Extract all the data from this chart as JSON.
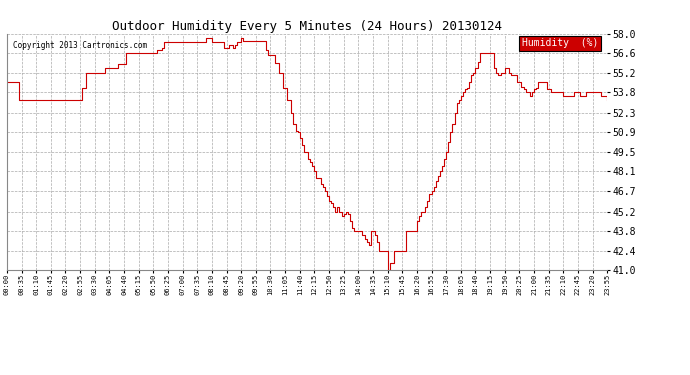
{
  "title": "Outdoor Humidity Every 5 Minutes (24 Hours) 20130124",
  "copyright": "Copyright 2013 Cartronics.com",
  "legend_label": "Humidity  (%)",
  "line_color": "#cc0000",
  "legend_bg": "#cc0000",
  "legend_text_color": "#ffffff",
  "bg_color": "#ffffff",
  "plot_bg_color": "#ffffff",
  "grid_color": "#aaaaaa",
  "yticks": [
    41.0,
    42.4,
    43.8,
    45.2,
    46.7,
    48.1,
    49.5,
    50.9,
    52.3,
    53.8,
    55.2,
    56.6,
    58.0
  ],
  "ylim": [
    41.0,
    58.0
  ],
  "n_points": 288,
  "tick_labels": [
    "00:00",
    "00:35",
    "01:10",
    "01:45",
    "02:20",
    "02:55",
    "03:30",
    "04:05",
    "04:40",
    "05:15",
    "05:50",
    "06:25",
    "07:00",
    "07:35",
    "08:10",
    "08:45",
    "09:20",
    "09:55",
    "10:30",
    "11:05",
    "11:40",
    "12:15",
    "12:50",
    "13:25",
    "14:00",
    "14:35",
    "15:10",
    "15:45",
    "16:20",
    "16:55",
    "17:30",
    "18:05",
    "18:40",
    "19:15",
    "19:50",
    "20:25",
    "21:00",
    "21:35",
    "22:10",
    "22:45",
    "23:20",
    "23:55"
  ],
  "humidity_values": [
    54.5,
    54.5,
    54.5,
    54.5,
    54.5,
    54.5,
    53.2,
    53.2,
    53.2,
    53.2,
    53.2,
    53.2,
    53.2,
    53.2,
    53.2,
    53.2,
    53.2,
    53.2,
    53.2,
    53.2,
    53.2,
    53.2,
    53.2,
    53.2,
    53.2,
    53.2,
    53.2,
    53.2,
    53.2,
    53.2,
    53.2,
    53.2,
    53.2,
    53.2,
    53.2,
    53.2,
    54.1,
    54.1,
    55.2,
    55.2,
    55.2,
    55.2,
    55.2,
    55.2,
    55.2,
    55.2,
    55.2,
    55.5,
    55.5,
    55.5,
    55.5,
    55.5,
    55.5,
    55.8,
    55.8,
    55.8,
    55.8,
    56.6,
    56.6,
    56.6,
    56.6,
    56.6,
    56.6,
    56.6,
    56.6,
    56.6,
    56.6,
    56.6,
    56.6,
    56.6,
    56.6,
    56.6,
    56.8,
    56.8,
    57.0,
    57.4,
    57.4,
    57.4,
    57.4,
    57.4,
    57.4,
    57.4,
    57.4,
    57.4,
    57.4,
    57.4,
    57.4,
    57.4,
    57.4,
    57.4,
    57.4,
    57.4,
    57.4,
    57.4,
    57.4,
    57.7,
    57.7,
    57.7,
    57.4,
    57.4,
    57.4,
    57.4,
    57.4,
    57.4,
    57.0,
    57.0,
    57.2,
    57.2,
    57.0,
    57.2,
    57.4,
    57.4,
    57.7,
    57.5,
    57.5,
    57.5,
    57.5,
    57.5,
    57.5,
    57.5,
    57.5,
    57.5,
    57.5,
    57.5,
    56.8,
    56.5,
    56.5,
    56.5,
    55.9,
    55.9,
    55.2,
    55.2,
    54.1,
    54.1,
    53.2,
    53.2,
    52.3,
    51.5,
    51.0,
    50.9,
    50.5,
    50.0,
    49.5,
    49.5,
    49.0,
    48.8,
    48.5,
    48.1,
    47.6,
    47.6,
    47.2,
    47.0,
    46.7,
    46.3,
    46.0,
    45.8,
    45.5,
    45.2,
    45.5,
    45.2,
    44.9,
    45.0,
    45.2,
    45.0,
    44.5,
    44.0,
    43.8,
    43.8,
    43.8,
    43.8,
    43.5,
    43.2,
    43.0,
    42.8,
    43.8,
    43.8,
    43.5,
    43.0,
    42.4,
    42.4,
    42.4,
    42.4,
    41.0,
    41.5,
    41.5,
    42.4,
    42.4,
    42.4,
    42.4,
    42.4,
    42.4,
    43.8,
    43.8,
    43.8,
    43.8,
    43.8,
    44.5,
    44.9,
    45.2,
    45.2,
    45.5,
    46.0,
    46.5,
    46.7,
    47.0,
    47.4,
    47.8,
    48.1,
    48.5,
    49.0,
    49.5,
    50.2,
    50.9,
    51.5,
    52.3,
    53.0,
    53.2,
    53.5,
    53.8,
    54.0,
    54.1,
    54.5,
    55.0,
    55.2,
    55.5,
    56.0,
    56.6,
    56.6,
    56.6,
    56.6,
    56.6,
    56.6,
    56.6,
    55.5,
    55.2,
    55.0,
    55.2,
    55.2,
    55.5,
    55.5,
    55.2,
    55.0,
    55.0,
    55.0,
    54.5,
    54.5,
    54.2,
    54.0,
    53.8,
    53.8,
    53.5,
    53.8,
    54.0,
    54.1,
    54.5,
    54.5,
    54.5,
    54.5,
    54.0,
    54.0,
    53.8,
    53.8,
    53.8,
    53.8,
    53.8,
    53.8,
    53.5,
    53.5,
    53.5,
    53.5,
    53.5,
    53.8,
    53.8,
    53.8,
    53.5,
    53.5,
    53.5,
    53.8,
    53.8,
    53.8,
    53.8,
    53.8,
    53.8,
    53.8,
    53.5,
    53.5,
    53.5,
    53.2
  ]
}
